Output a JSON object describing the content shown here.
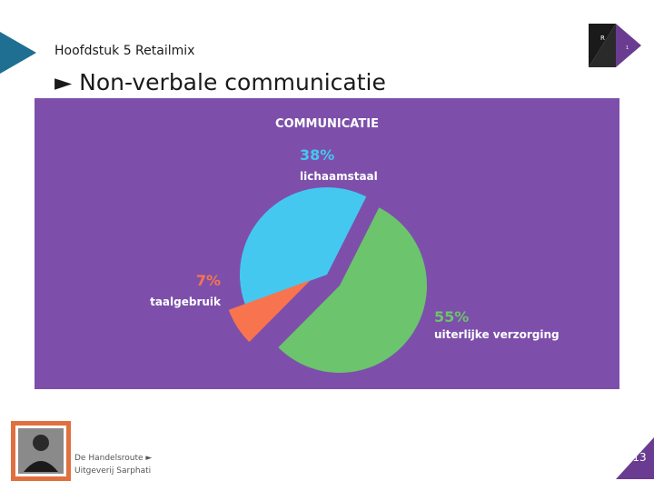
{
  "header": {
    "chapter": "Hoofdstuk 5 Retailmix",
    "title": "► Non-verbale communicatie",
    "brand_letter": "R",
    "brand_number": "1"
  },
  "colors": {
    "background_panel": "#7d4fab",
    "accent_teal": "#1f6f93",
    "slice_lichaamstaal": "#44c8f0",
    "slice_uiterlijke": "#6cc46d",
    "slice_taalgebruik": "#f7744f",
    "badge": "#6a3c91"
  },
  "chart_data": {
    "type": "pie",
    "title": "COMMUNICATIE",
    "slices": [
      {
        "label": "lichaamstaal",
        "value": 38,
        "value_label": "38%",
        "color": "#44c8f0"
      },
      {
        "label": "uiterlijke verzorging",
        "value": 55,
        "value_label": "55%",
        "color": "#6cc46d"
      },
      {
        "label": "taalgebruik",
        "value": 7,
        "value_label": "7%",
        "color": "#f7744f"
      }
    ]
  },
  "footer": {
    "publisher_line1": "De Handelsroute ►",
    "publisher_line2": "Uitgeverij Sarphati",
    "page_number": "13"
  }
}
